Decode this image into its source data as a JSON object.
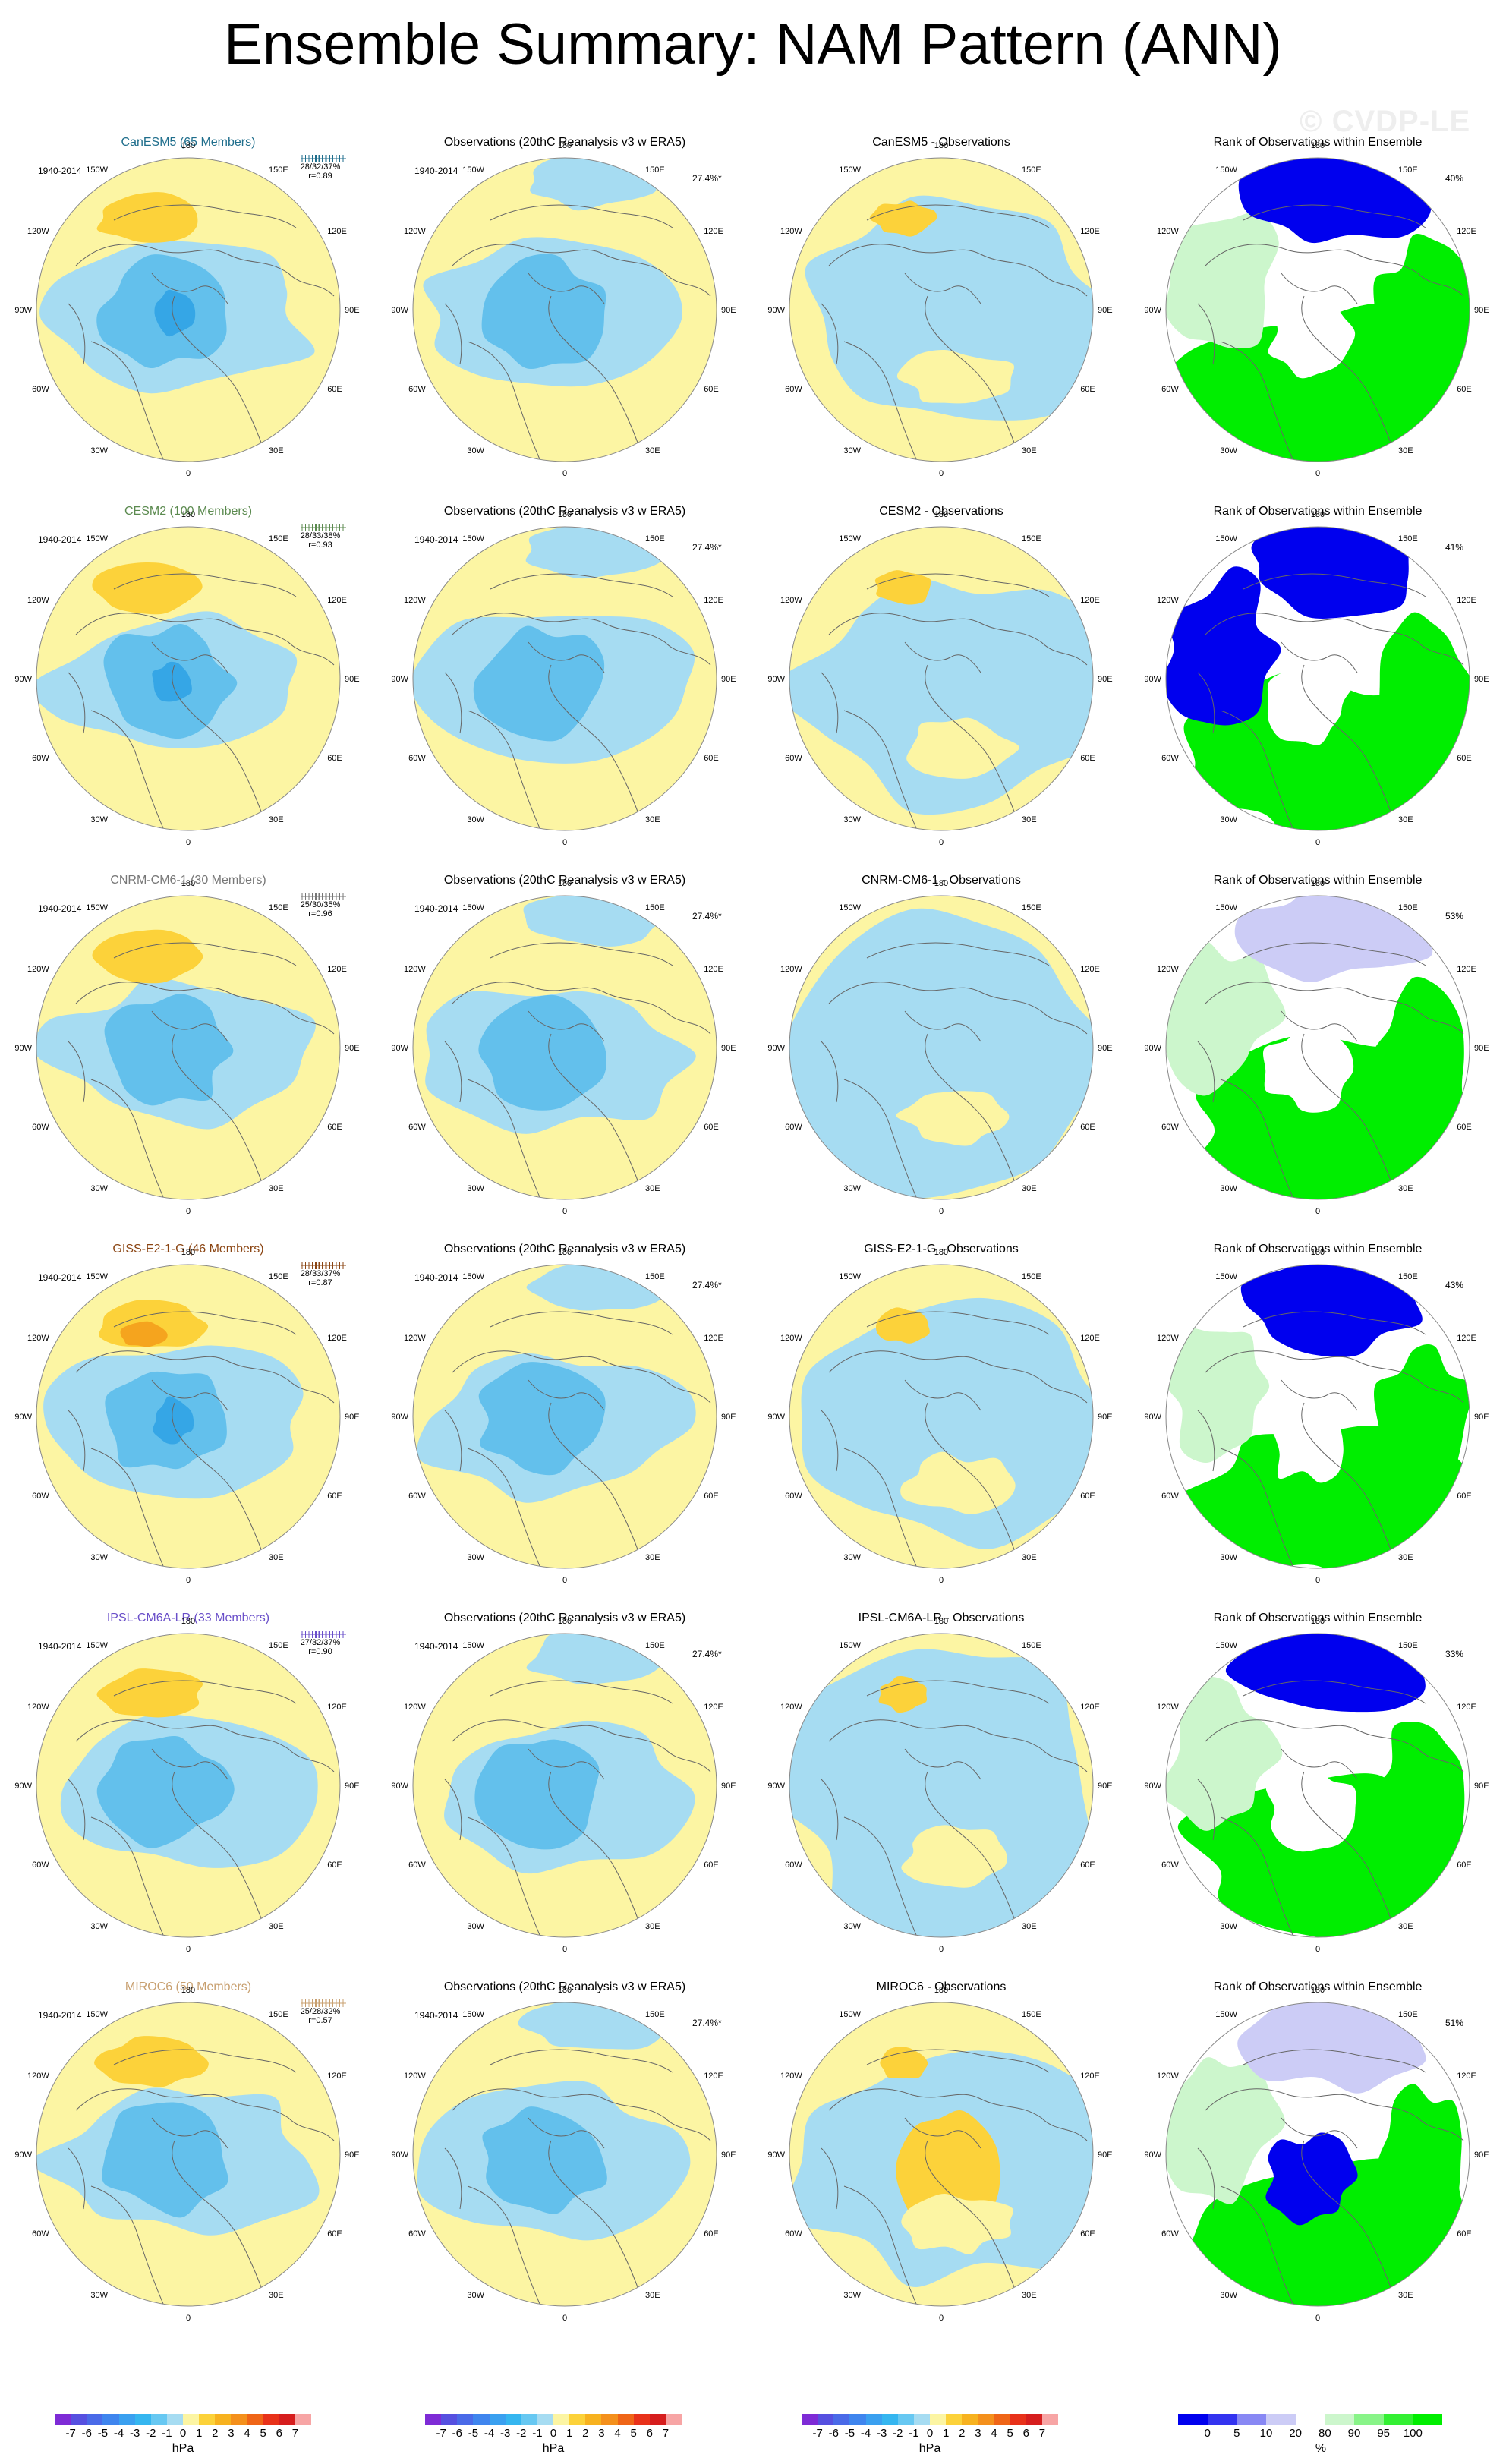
{
  "page_title": "Ensemble Summary: NAM Pattern (ANN)",
  "watermark": "© CVDP-LE",
  "colors": {
    "ocean_blue": "#a6dcf2",
    "mid_blue": "#63c0ec",
    "deep_blue": "#35a6e6",
    "pale_yellow": "#fcf5a3",
    "gold": "#fcd23a",
    "orange": "#f5a41e",
    "rank_low": "#0000ee",
    "rank_mid": "#ccccf6",
    "rank_high": "#00ee00"
  },
  "columns": [
    "model",
    "observations",
    "difference",
    "rank"
  ],
  "rows": [
    {
      "model_title": "CanESM5 (65 Members)",
      "model_color": "#1f6e8c",
      "period": "1940-2014",
      "stats": "28/32/37%",
      "corr": "r=0.89",
      "obs_title": "Observations (20thC Reanalysis v3 w ERA5)",
      "obs_pct": "27.4%*",
      "obs_period": "1940-2014",
      "diff_title": "CanESM5 - Observations",
      "rank_title": "Rank of Observations within Ensemble",
      "rank_pct": "40%"
    },
    {
      "model_title": "CESM2 (100 Members)",
      "model_color": "#5b8a4f",
      "period": "1940-2014",
      "stats": "28/33/38%",
      "corr": "r=0.93",
      "obs_title": "Observations (20thC Reanalysis v3 w ERA5)",
      "obs_pct": "27.4%*",
      "obs_period": "1940-2014",
      "diff_title": "CESM2 - Observations",
      "rank_title": "Rank of Observations within Ensemble",
      "rank_pct": "41%"
    },
    {
      "model_title": "CNRM-CM6-1 (30 Members)",
      "model_color": "#777777",
      "period": "1940-2014",
      "stats": "25/30/35%",
      "corr": "r=0.96",
      "obs_title": "Observations (20thC Reanalysis v3 w ERA5)",
      "obs_pct": "27.4%*",
      "obs_period": "1940-2014",
      "diff_title": "CNRM-CM6-1 - Observations",
      "rank_title": "Rank of Observations within Ensemble",
      "rank_pct": "53%"
    },
    {
      "model_title": "GISS-E2-1-G (46 Members)",
      "model_color": "#8b4513",
      "period": "1940-2014",
      "stats": "28/33/37%",
      "corr": "r=0.87",
      "obs_title": "Observations (20thC Reanalysis v3 w ERA5)",
      "obs_pct": "27.4%*",
      "obs_period": "1940-2014",
      "diff_title": "GISS-E2-1-G - Observations",
      "rank_title": "Rank of Observations within Ensemble",
      "rank_pct": "43%"
    },
    {
      "model_title": "IPSL-CM6A-LR (33 Members)",
      "model_color": "#6a4fc9",
      "period": "1940-2014",
      "stats": "27/32/37%",
      "corr": "r=0.90",
      "obs_title": "Observations (20thC Reanalysis v3 w ERA5)",
      "obs_pct": "27.4%*",
      "obs_period": "1940-2014",
      "diff_title": "IPSL-CM6A-LR - Observations",
      "rank_title": "Rank of Observations within Ensemble",
      "rank_pct": "33%"
    },
    {
      "model_title": "MIROC6 (50 Members)",
      "model_color": "#c8a070",
      "period": "1940-2014",
      "stats": "25/28/32%",
      "corr": "r=0.57",
      "obs_title": "Observations (20thC Reanalysis v3 w ERA5)",
      "obs_pct": "27.4%*",
      "obs_period": "1940-2014",
      "diff_title": "MIROC6 - Observations",
      "rank_title": "Rank of Observations within Ensemble",
      "rank_pct": "51%"
    }
  ],
  "map_labels": {
    "top": "180",
    "bottom": "0",
    "upper_left": "150W",
    "upper_right": "150E",
    "left_upper": "120W",
    "right_upper": "120E",
    "left": "90W",
    "right": "90E",
    "left_lower": "60W",
    "right_lower": "60E",
    "lower_left": "30W",
    "lower_right": "30E"
  },
  "chart_data": [
    {
      "type": "heatmap",
      "title": "Ensemble Summary: NAM Pattern (ANN)",
      "projection": "north polar stereographic",
      "period": "1940-2014",
      "panels_per_row": [
        "ensemble-mean NAM pattern",
        "observed NAM pattern",
        "ensemble mean minus observations",
        "rank of observations within ensemble"
      ],
      "models": [
        "CanESM5",
        "CESM2",
        "CNRM-CM6-1",
        "GISS-E2-1-G",
        "IPSL-CM6A-LR",
        "MIROC6"
      ],
      "members": [
        65,
        100,
        30,
        46,
        33,
        50
      ],
      "percent_variance_explained": [
        "28/32/37%",
        "28/33/38%",
        "25/30/35%",
        "28/33/37%",
        "27/32/37%",
        "25/28/32%"
      ],
      "pattern_correlation": [
        0.89,
        0.93,
        0.96,
        0.87,
        0.9,
        0.57
      ],
      "observations": {
        "name": "20thC Reanalysis v3 w ERA5",
        "percent_variance_explained": "27.4%*"
      },
      "rank_percent": [
        "40%",
        "41%",
        "53%",
        "43%",
        "33%",
        "51%"
      ]
    }
  ],
  "colorbars": [
    {
      "ticks": [
        "-7",
        "-6",
        "-5",
        "-4",
        "-3",
        "-2",
        "-1",
        "0",
        "1",
        "2",
        "3",
        "4",
        "5",
        "6",
        "7"
      ],
      "unit": "hPa",
      "colors": [
        "#7e2bd6",
        "#5650e0",
        "#4a6ae8",
        "#3f85ee",
        "#3aa0f0",
        "#35b6f0",
        "#67c8f2",
        "#a6dcf2",
        "#fcf5a3",
        "#fcd23a",
        "#f7b21f",
        "#f4901c",
        "#ef6517",
        "#e8321a",
        "#d61e1e",
        "#f7a5a5"
      ]
    },
    {
      "ticks": [
        "-7",
        "-6",
        "-5",
        "-4",
        "-3",
        "-2",
        "-1",
        "0",
        "1",
        "2",
        "3",
        "4",
        "5",
        "6",
        "7"
      ],
      "unit": "hPa",
      "colors": [
        "#7e2bd6",
        "#5650e0",
        "#4a6ae8",
        "#3f85ee",
        "#3aa0f0",
        "#35b6f0",
        "#67c8f2",
        "#a6dcf2",
        "#fcf5a3",
        "#fcd23a",
        "#f7b21f",
        "#f4901c",
        "#ef6517",
        "#e8321a",
        "#d61e1e",
        "#f7a5a5"
      ]
    },
    {
      "ticks": [
        "-7",
        "-6",
        "-5",
        "-4",
        "-3",
        "-2",
        "-1",
        "0",
        "1",
        "2",
        "3",
        "4",
        "5",
        "6",
        "7"
      ],
      "unit": "hPa",
      "colors": [
        "#7e2bd6",
        "#5650e0",
        "#4a6ae8",
        "#3f85ee",
        "#3aa0f0",
        "#35b6f0",
        "#67c8f2",
        "#a6dcf2",
        "#fcf5a3",
        "#fcd23a",
        "#f7b21f",
        "#f4901c",
        "#ef6517",
        "#e8321a",
        "#d61e1e",
        "#f7a5a5"
      ]
    },
    {
      "ticks": [
        "0",
        "5",
        "10",
        "20",
        "80",
        "90",
        "95",
        "100"
      ],
      "unit": "%",
      "colors": [
        "#0000ee",
        "#3333f0",
        "#8888f4",
        "#ccccf6",
        "#ffffff",
        "#ccf6cc",
        "#88f488",
        "#33f033",
        "#00ee00"
      ]
    }
  ]
}
